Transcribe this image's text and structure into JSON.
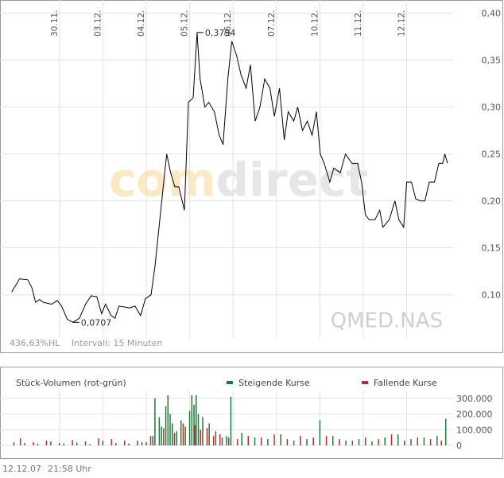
{
  "chart_data": [
    {
      "type": "line",
      "series": [
        {
          "color": "#000000",
          "x": [
            -1.1,
            -0.92,
            -0.73,
            -0.64,
            -0.55,
            -0.46,
            -0.37,
            -0.18,
            -0.05,
            0.05,
            0.18,
            0.31,
            0.46,
            0.6,
            0.73,
            0.86,
            0.97,
            1.06,
            1.19,
            1.28,
            1.37,
            1.5,
            1.61,
            1.74,
            1.87,
            1.98,
            2.11,
            2.2,
            2.29,
            2.38,
            2.47,
            2.56,
            2.66,
            2.75,
            2.88,
            2.97,
            3.08,
            3.17,
            3.24,
            3.35,
            3.44,
            3.57,
            3.68,
            3.77,
            3.88,
            3.97,
            4.08,
            4.18,
            4.3,
            4.4,
            4.51,
            4.62,
            4.73,
            4.85,
            4.95,
            5.07,
            5.18,
            5.27,
            5.4,
            5.49,
            5.6,
            5.71,
            5.82,
            5.92,
            6.01,
            6.1,
            6.23,
            6.32,
            6.47,
            6.59,
            6.74,
            6.87,
            6.96,
            7.05,
            7.14,
            7.27,
            7.38,
            7.45,
            7.6,
            7.73,
            7.82,
            7.93,
            8.0,
            8.11,
            8.21,
            8.33,
            8.42,
            8.52,
            8.64,
            8.74,
            8.83,
            8.88,
            8.94
          ],
          "values": [
            0.103,
            0.117,
            0.116,
            0.108,
            0.092,
            0.095,
            0.092,
            0.09,
            0.094,
            0.088,
            0.074,
            0.0707,
            0.075,
            0.09,
            0.099,
            0.098,
            0.08,
            0.09,
            0.078,
            0.075,
            0.088,
            0.087,
            0.086,
            0.088,
            0.078,
            0.096,
            0.1,
            0.13,
            0.17,
            0.21,
            0.25,
            0.23,
            0.215,
            0.215,
            0.19,
            0.305,
            0.31,
            0.3794,
            0.33,
            0.3,
            0.305,
            0.295,
            0.27,
            0.26,
            0.33,
            0.37,
            0.355,
            0.335,
            0.32,
            0.345,
            0.285,
            0.3,
            0.33,
            0.32,
            0.29,
            0.32,
            0.265,
            0.295,
            0.285,
            0.3,
            0.275,
            0.285,
            0.27,
            0.295,
            0.25,
            0.24,
            0.22,
            0.235,
            0.23,
            0.25,
            0.24,
            0.24,
            0.22,
            0.185,
            0.18,
            0.18,
            0.19,
            0.172,
            0.18,
            0.2,
            0.18,
            0.172,
            0.22,
            0.22,
            0.202,
            0.2,
            0.2,
            0.22,
            0.22,
            0.24,
            0.24,
            0.25,
            0.24
          ]
        }
      ],
      "xlim": [
        -1.37,
        9.07
      ],
      "xticks": [
        {
          "value": 0,
          "label": "30.11."
        },
        {
          "value": 1,
          "label": "03.12."
        },
        {
          "value": 2,
          "label": "04.12."
        },
        {
          "value": 3,
          "label": "05.12."
        },
        {
          "value": 4,
          "label": "06.12."
        },
        {
          "value": 5,
          "label": "07.12."
        },
        {
          "value": 6,
          "label": "10.12."
        },
        {
          "value": 7,
          "label": "11.12."
        },
        {
          "value": 8,
          "label": "12.12."
        }
      ],
      "ylim": [
        0.054,
        0.414
      ],
      "yticks": [
        {
          "value": 0.1,
          "label": "0,10"
        },
        {
          "value": 0.15,
          "label": "0,15"
        },
        {
          "value": 0.2,
          "label": "0,20"
        },
        {
          "value": 0.25,
          "label": "0,25"
        },
        {
          "value": 0.3,
          "label": "0,30"
        },
        {
          "value": 0.35,
          "label": "0,35"
        },
        {
          "value": 0.4,
          "label": "0,40"
        }
      ],
      "grid": true,
      "annotations": [
        {
          "text": "0,3794",
          "x": 3.17,
          "value": 0.3794
        },
        {
          "text": "0,0707",
          "x": 0.31,
          "value": 0.0707
        }
      ],
      "range_label": "436,63%HL",
      "interval": "Intervall: 15 Minuten",
      "watermark": "QMED.NAS",
      "logo": [
        "com",
        "direct"
      ]
    },
    {
      "type": "bar",
      "title": "Stück-Volumen (rot-grün)",
      "series": [
        {
          "name": "Steigende Kurse",
          "color": "#1f7a3c",
          "x": [
            -1.05,
            -0.8,
            -0.5,
            -0.2,
            0.1,
            0.4,
            0.7,
            1.0,
            1.3,
            1.6,
            1.9,
            2.1,
            2.2,
            2.3,
            2.35,
            2.45,
            2.5,
            2.55,
            2.6,
            2.7,
            2.8,
            2.9,
            3.0,
            3.05,
            3.1,
            3.15,
            3.2,
            3.3,
            3.45,
            3.6,
            3.75,
            3.85,
            3.95,
            4.2,
            4.5,
            4.8,
            5.1,
            5.4,
            5.7,
            6.0,
            6.3,
            6.6,
            6.9,
            7.2,
            7.5,
            7.8,
            8.1,
            8.4,
            8.7,
            8.9
          ],
          "values": [
            20000,
            15000,
            10000,
            25000,
            12000,
            18000,
            8000,
            30000,
            15000,
            12000,
            20000,
            60000,
            300000,
            180000,
            120000,
            250000,
            320000,
            200000,
            140000,
            90000,
            160000,
            120000,
            220000,
            320000,
            260000,
            320000,
            200000,
            180000,
            140000,
            90000,
            50000,
            60000,
            310000,
            80000,
            50000,
            40000,
            70000,
            30000,
            40000,
            160000,
            60000,
            30000,
            40000,
            25000,
            50000,
            70000,
            40000,
            50000,
            60000,
            170000
          ]
        },
        {
          "name": "Fallende Kurse",
          "color": "#c0282d",
          "x": [
            -0.9,
            -0.6,
            -0.3,
            0.0,
            0.3,
            0.6,
            0.9,
            1.2,
            1.5,
            1.8,
            2.0,
            2.15,
            2.4,
            2.65,
            2.85,
            3.12,
            3.25,
            3.4,
            3.55,
            3.7,
            3.9,
            4.1,
            4.35,
            4.65,
            4.95,
            5.25,
            5.55,
            5.85,
            6.15,
            6.45,
            6.75,
            7.05,
            7.35,
            7.65,
            7.95,
            8.25,
            8.55,
            8.8
          ],
          "values": [
            45000,
            20000,
            30000,
            15000,
            35000,
            25000,
            45000,
            40000,
            30000,
            30000,
            20000,
            60000,
            110000,
            80000,
            140000,
            130000,
            100000,
            110000,
            60000,
            70000,
            50000,
            40000,
            60000,
            50000,
            70000,
            40000,
            60000,
            50000,
            60000,
            40000,
            30000,
            50000,
            40000,
            70000,
            30000,
            50000,
            40000,
            30000
          ]
        }
      ],
      "xlim": [
        -1.37,
        9.07
      ],
      "ylim": [
        0,
        350000
      ],
      "yticks": [
        0,
        {
          "value": 100000,
          "label": "100.000"
        },
        {
          "value": 200000,
          "label": "200.000"
        },
        {
          "value": 300000,
          "label": "300.000"
        }
      ],
      "grid": true
    }
  ],
  "footer": {
    "date": "12.12.07",
    "time": "21:58 Uhr"
  }
}
